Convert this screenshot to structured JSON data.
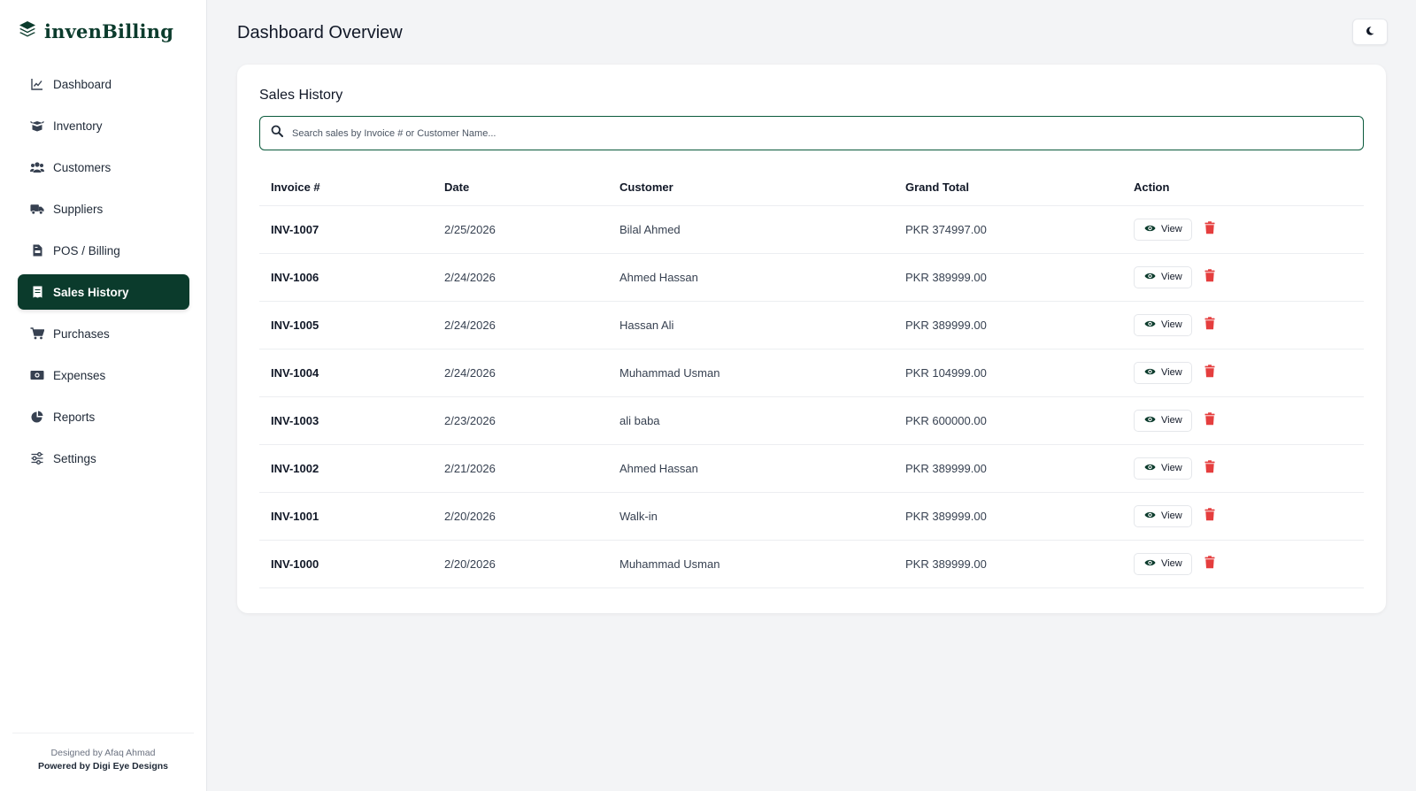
{
  "brand": {
    "name": "invenBilling",
    "icon": "layers-icon"
  },
  "sidebar": {
    "items": [
      {
        "label": "Dashboard",
        "icon": "chart-line-icon",
        "active": false
      },
      {
        "label": "Inventory",
        "icon": "box-open-icon",
        "active": false
      },
      {
        "label": "Customers",
        "icon": "users-icon",
        "active": false
      },
      {
        "label": "Suppliers",
        "icon": "truck-icon",
        "active": false
      },
      {
        "label": "POS / Billing",
        "icon": "file-invoice-icon",
        "active": false
      },
      {
        "label": "Sales History",
        "icon": "receipt-icon",
        "active": true
      },
      {
        "label": "Purchases",
        "icon": "cart-icon",
        "active": false
      },
      {
        "label": "Expenses",
        "icon": "money-bill-icon",
        "active": false
      },
      {
        "label": "Reports",
        "icon": "pie-chart-icon",
        "active": false
      },
      {
        "label": "Settings",
        "icon": "sliders-icon",
        "active": false
      }
    ],
    "footer": {
      "designed_by": "Designed by Afaq Ahmad",
      "powered_by": "Powered by Digi Eye Designs"
    }
  },
  "header": {
    "title": "Dashboard Overview",
    "theme_toggle_icon": "moon-icon"
  },
  "sales": {
    "title": "Sales History",
    "search_placeholder": "Search sales by Invoice # or Customer Name...",
    "columns": {
      "invoice": "Invoice #",
      "date": "Date",
      "customer": "Customer",
      "total": "Grand Total",
      "action": "Action"
    },
    "view_label": "View",
    "rows": [
      {
        "invoice": "INV-1007",
        "date": "2/25/2026",
        "customer": "Bilal Ahmed",
        "total": "PKR 374997.00"
      },
      {
        "invoice": "INV-1006",
        "date": "2/24/2026",
        "customer": "Ahmed Hassan",
        "total": "PKR 389999.00"
      },
      {
        "invoice": "INV-1005",
        "date": "2/24/2026",
        "customer": "Hassan Ali",
        "total": "PKR 389999.00"
      },
      {
        "invoice": "INV-1004",
        "date": "2/24/2026",
        "customer": "Muhammad Usman",
        "total": "PKR 104999.00"
      },
      {
        "invoice": "INV-1003",
        "date": "2/23/2026",
        "customer": "ali baba",
        "total": "PKR 600000.00"
      },
      {
        "invoice": "INV-1002",
        "date": "2/21/2026",
        "customer": "Ahmed Hassan",
        "total": "PKR 389999.00"
      },
      {
        "invoice": "INV-1001",
        "date": "2/20/2026",
        "customer": "Walk-in",
        "total": "PKR 389999.00"
      },
      {
        "invoice": "INV-1000",
        "date": "2/20/2026",
        "customer": "Muhammad Usman",
        "total": "PKR 389999.00"
      }
    ]
  },
  "colors": {
    "primary": "#0b3b2c",
    "accent_border": "#0b5a3c",
    "danger": "#e53e3e",
    "background": "#f3f4f6"
  }
}
